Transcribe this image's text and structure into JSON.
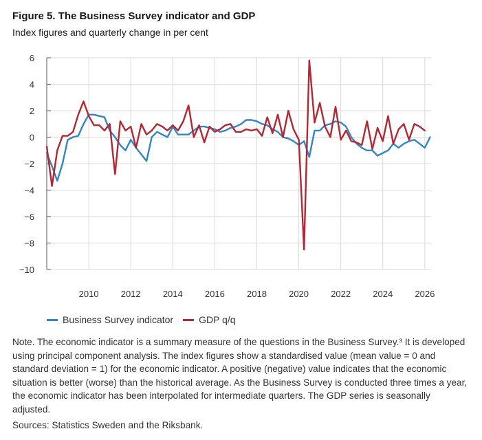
{
  "title": "Figure 5. The Business Survey indicator and GDP",
  "subtitle": "Index figures and quarterly change in per cent",
  "note": "Note. The economic indicator is a summary measure of the questions in the Business Survey.³ It is developed using principal component analysis. The index figures show a standardised value (mean value = 0 and standard deviation = 1) for the economic indicator. A positive (negative) value indicates that the economic situation is better (worse) than the historical average. As the Business Survey is conducted three times a year, the economic indicator has been interpolated for intermediate quarters. The GDP series is seasonally adjusted.",
  "sources": "Sources: Statistics Sweden and the Riksbank.",
  "colors": {
    "series1": "#2e86c8",
    "series2": "#b8242f",
    "grid": "#d9d9d9",
    "axis": "#555555"
  },
  "chart_data": {
    "type": "line",
    "xlim": [
      2008,
      2026.3
    ],
    "ylim": [
      -10,
      6
    ],
    "yticks": [
      "6",
      "4",
      "2",
      "0",
      "−2",
      "−4",
      "−6",
      "−8",
      "−10"
    ],
    "xticks": [
      "2010",
      "2012",
      "2014",
      "2016",
      "2018",
      "2020",
      "2022",
      "2024",
      "2026"
    ],
    "legend": "bottom",
    "series": [
      {
        "name": "Business Survey indicator",
        "x": [
          2008.0,
          2008.25,
          2008.5,
          2008.75,
          2009.0,
          2009.25,
          2009.5,
          2009.75,
          2010.0,
          2010.25,
          2010.5,
          2010.75,
          2011.0,
          2011.25,
          2011.5,
          2011.75,
          2012.0,
          2012.25,
          2012.5,
          2012.75,
          2013.0,
          2013.25,
          2013.5,
          2013.75,
          2014.0,
          2014.25,
          2014.5,
          2014.75,
          2015.0,
          2015.25,
          2015.5,
          2015.75,
          2016.0,
          2016.25,
          2016.5,
          2016.75,
          2017.0,
          2017.25,
          2017.5,
          2017.75,
          2018.0,
          2018.25,
          2018.5,
          2018.75,
          2019.0,
          2019.25,
          2019.5,
          2019.75,
          2020.0,
          2020.25,
          2020.5,
          2020.75,
          2021.0,
          2021.25,
          2021.5,
          2021.75,
          2022.0,
          2022.25,
          2022.5,
          2022.75,
          2023.0,
          2023.25,
          2023.5,
          2023.75,
          2024.0,
          2024.25,
          2024.5,
          2024.75,
          2025.0,
          2025.25,
          2025.5,
          2025.75,
          2026.0,
          2026.25
        ],
        "values": [
          -1.2,
          -2.2,
          -3.3,
          -2.0,
          -0.2,
          0.0,
          0.1,
          1.0,
          1.7,
          1.7,
          1.6,
          1.5,
          0.5,
          0.0,
          -0.6,
          -1.0,
          -0.2,
          -0.8,
          -1.3,
          -1.8,
          0.0,
          0.4,
          0.2,
          0.0,
          0.8,
          0.2,
          0.2,
          0.2,
          0.5,
          0.8,
          0.8,
          0.7,
          0.6,
          0.4,
          0.5,
          0.7,
          0.8,
          1.0,
          1.3,
          1.3,
          1.2,
          1.0,
          0.9,
          0.6,
          0.4,
          0.0,
          -0.1,
          -0.3,
          -0.6,
          -0.3,
          -1.5,
          0.5,
          0.5,
          0.9,
          1.0,
          1.2,
          1.1,
          0.8,
          0.0,
          -0.5,
          -0.8,
          -1.0,
          -1.0,
          -1.4,
          -1.2,
          -1.0,
          -0.5,
          -0.8,
          -0.5,
          -0.3,
          -0.2,
          -0.5,
          -0.8,
          0.0
        ]
      },
      {
        "name": "GDP q/q",
        "x": [
          2008.0,
          2008.25,
          2008.5,
          2008.75,
          2009.0,
          2009.25,
          2009.5,
          2009.75,
          2010.0,
          2010.25,
          2010.5,
          2010.75,
          2011.0,
          2011.25,
          2011.5,
          2011.75,
          2012.0,
          2012.25,
          2012.5,
          2012.75,
          2013.0,
          2013.25,
          2013.5,
          2013.75,
          2014.0,
          2014.25,
          2014.5,
          2014.75,
          2015.0,
          2015.25,
          2015.5,
          2015.75,
          2016.0,
          2016.25,
          2016.5,
          2016.75,
          2017.0,
          2017.25,
          2017.5,
          2017.75,
          2018.0,
          2018.25,
          2018.5,
          2018.75,
          2019.0,
          2019.25,
          2019.5,
          2019.75,
          2020.0,
          2020.25,
          2020.5,
          2020.75,
          2021.0,
          2021.25,
          2021.5,
          2021.75,
          2022.0,
          2022.25,
          2022.5,
          2022.75,
          2023.0,
          2023.25,
          2023.5,
          2023.75,
          2024.0,
          2024.25,
          2024.5,
          2024.75,
          2025.0,
          2025.25,
          2025.5,
          2025.75,
          2026.0
        ],
        "values": [
          -0.7,
          -3.7,
          -1.0,
          0.1,
          0.1,
          0.4,
          1.7,
          2.7,
          1.6,
          0.9,
          0.9,
          0.5,
          1.0,
          -2.8,
          1.2,
          0.5,
          0.8,
          -0.8,
          1.0,
          0.2,
          0.5,
          1.0,
          0.8,
          0.5,
          0.9,
          0.5,
          1.2,
          2.4,
          0.0,
          0.9,
          -0.4,
          0.8,
          0.4,
          0.6,
          0.9,
          1.0,
          0.4,
          0.4,
          0.6,
          0.5,
          0.6,
          0.1,
          1.5,
          0.3,
          1.7,
          0.0,
          2.0,
          0.6,
          -0.2,
          -8.5,
          5.8,
          1.1,
          2.6,
          0.8,
          0.0,
          2.3,
          -0.2,
          0.5,
          -0.3,
          -0.4,
          -0.6,
          1.2,
          -0.9,
          0.7,
          -0.3,
          1.6,
          -0.5,
          0.6,
          1.0,
          -0.2,
          1.0,
          0.8,
          0.5
        ]
      }
    ]
  }
}
